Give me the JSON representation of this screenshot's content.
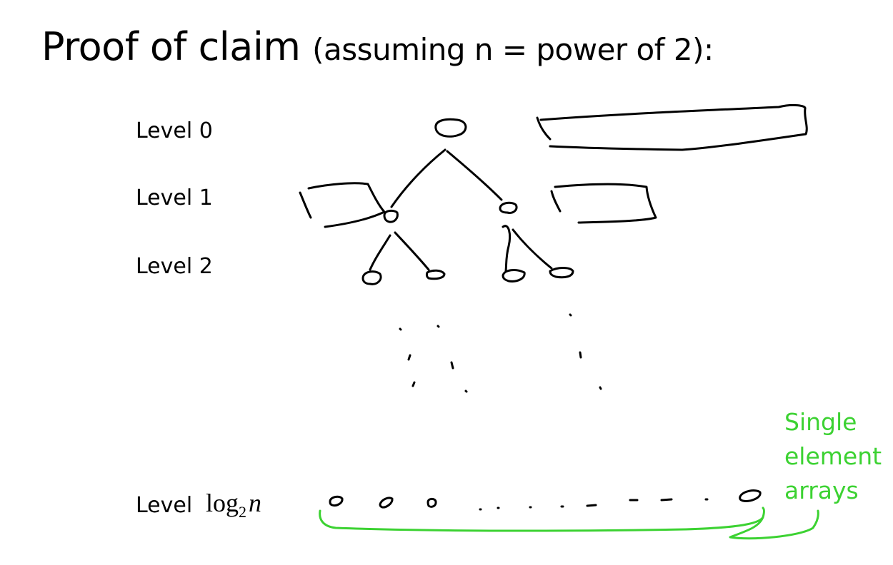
{
  "title": {
    "main": "Proof of claim",
    "sub": "(assuming n = power of 2):"
  },
  "levels": [
    {
      "label": "Level 0"
    },
    {
      "label": "Level 1"
    },
    {
      "label": "Level 2"
    },
    {
      "label": "Level",
      "math_base": "log",
      "math_sub": "2",
      "math_var": "n"
    }
  ],
  "note": {
    "lines": [
      "Single",
      "element",
      "arrays"
    ],
    "color": "#3cd232"
  },
  "colors": {
    "ink": "#000000",
    "annotation": "#3cd232"
  }
}
